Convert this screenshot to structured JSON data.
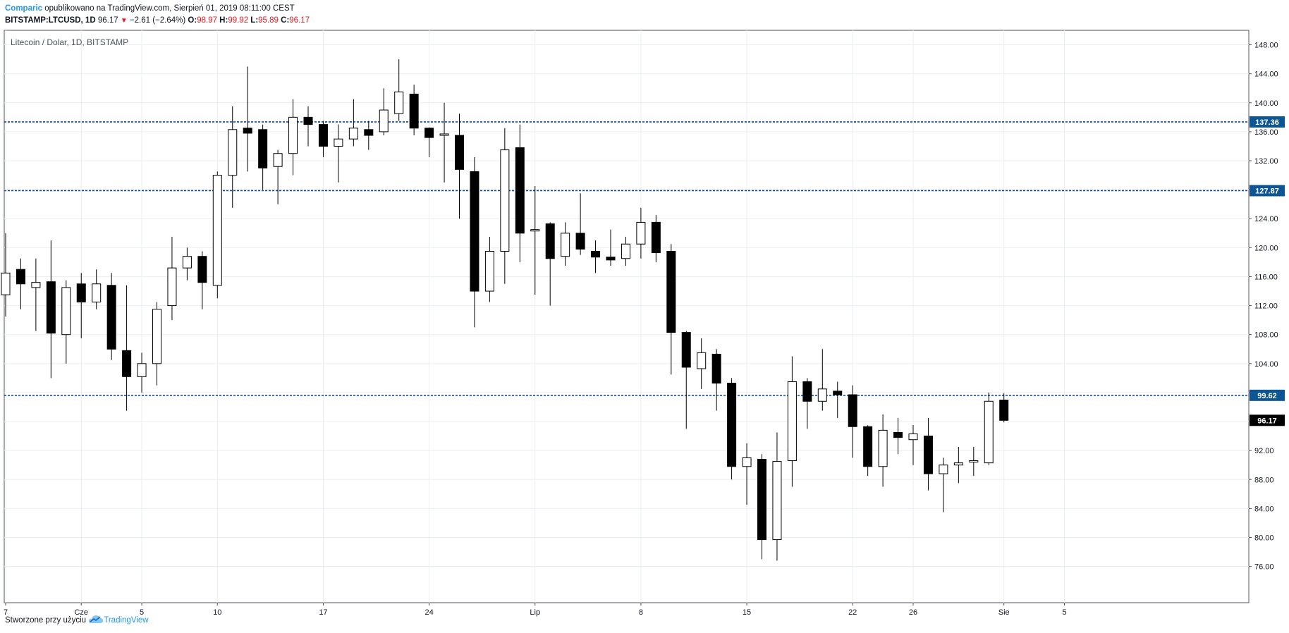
{
  "header": {
    "author": "Comparic",
    "published": "opublikowano na TradingView.com, Sierpień 01, 2019 08:11:00 CEST",
    "symbol": "BITSTAMP:LTCUSD, 1D",
    "last": "96.17",
    "change": "−2.61 (−2.64%)",
    "o_label": "O:",
    "o_value": "98.97",
    "h_label": "H:",
    "h_value": "99.92",
    "l_label": "L:",
    "l_value": "95.89",
    "c_label": "C:",
    "c_value": "96.17"
  },
  "footer": {
    "created_with": "Stworzone przy użyciu",
    "brand": "TradingView"
  },
  "colors": {
    "up_candle": "#ffffff",
    "down_candle": "#000000",
    "level_line": "#0d47a1",
    "level_label_bg": "#0d5593",
    "last_price_bg": "#000000",
    "grid": "#e9eef2"
  },
  "chart_data": {
    "type": "candlestick",
    "title": "Litecoin / Dolar, 1D, BITSTAMP",
    "ylim": [
      71,
      150
    ],
    "y_ticks": [
      76,
      80,
      84,
      88,
      92,
      96,
      100,
      104,
      108,
      112,
      116,
      120,
      124,
      128,
      132,
      136,
      140,
      144,
      148
    ],
    "x_tick_labels": [
      {
        "label": "7",
        "index": 0
      },
      {
        "label": "Cze",
        "index": 5
      },
      {
        "label": "5",
        "index": 9
      },
      {
        "label": "10",
        "index": 14
      },
      {
        "label": "17",
        "index": 21
      },
      {
        "label": "24",
        "index": 28
      },
      {
        "label": "Lip",
        "index": 35
      },
      {
        "label": "8",
        "index": 42
      },
      {
        "label": "15",
        "index": 49
      },
      {
        "label": "22",
        "index": 56
      },
      {
        "label": "26",
        "index": 60
      },
      {
        "label": "Sie",
        "index": 66
      },
      {
        "label": "5",
        "index": 70
      }
    ],
    "levels": [
      137.36,
      127.87,
      99.62
    ],
    "level_labels": [
      "137.36",
      "127.87",
      "99.62"
    ],
    "last_price": 96.17,
    "last_price_label": "96.17",
    "candles": [
      {
        "o": 113.5,
        "h": 122.0,
        "l": 110.5,
        "c": 116.5
      },
      {
        "o": 117.0,
        "h": 118.5,
        "l": 111.5,
        "c": 115.0
      },
      {
        "o": 114.5,
        "h": 118.5,
        "l": 108.5,
        "c": 115.2
      },
      {
        "o": 115.3,
        "h": 121.0,
        "l": 102.0,
        "c": 108.2
      },
      {
        "o": 108.0,
        "h": 115.5,
        "l": 104.0,
        "c": 114.5
      },
      {
        "o": 115.0,
        "h": 116.5,
        "l": 107.5,
        "c": 112.5
      },
      {
        "o": 112.5,
        "h": 117.0,
        "l": 111.5,
        "c": 115.0
      },
      {
        "o": 114.8,
        "h": 116.5,
        "l": 104.5,
        "c": 106.0
      },
      {
        "o": 105.8,
        "h": 114.8,
        "l": 97.5,
        "c": 102.2
      },
      {
        "o": 102.2,
        "h": 105.5,
        "l": 100.0,
        "c": 104.0
      },
      {
        "o": 104.0,
        "h": 112.5,
        "l": 101.0,
        "c": 111.5
      },
      {
        "o": 112.0,
        "h": 121.5,
        "l": 110.0,
        "c": 117.2
      },
      {
        "o": 117.2,
        "h": 120.0,
        "l": 115.5,
        "c": 118.8
      },
      {
        "o": 118.8,
        "h": 119.5,
        "l": 111.5,
        "c": 115.2
      },
      {
        "o": 114.8,
        "h": 130.5,
        "l": 113.0,
        "c": 130.0
      },
      {
        "o": 130.0,
        "h": 139.5,
        "l": 125.5,
        "c": 136.3
      },
      {
        "o": 136.5,
        "h": 145.0,
        "l": 130.5,
        "c": 135.8
      },
      {
        "o": 136.3,
        "h": 137.0,
        "l": 128.0,
        "c": 131.0
      },
      {
        "o": 131.2,
        "h": 133.5,
        "l": 126.0,
        "c": 133.0
      },
      {
        "o": 133.0,
        "h": 140.5,
        "l": 130.0,
        "c": 138.0
      },
      {
        "o": 138.0,
        "h": 139.5,
        "l": 134.0,
        "c": 137.0
      },
      {
        "o": 137.0,
        "h": 137.5,
        "l": 132.5,
        "c": 134.0
      },
      {
        "o": 134.0,
        "h": 137.0,
        "l": 129.0,
        "c": 135.0
      },
      {
        "o": 135.0,
        "h": 140.5,
        "l": 134.0,
        "c": 136.5
      },
      {
        "o": 136.3,
        "h": 137.5,
        "l": 133.5,
        "c": 135.5
      },
      {
        "o": 136.0,
        "h": 142.0,
        "l": 135.5,
        "c": 139.0
      },
      {
        "o": 138.5,
        "h": 146.0,
        "l": 137.5,
        "c": 141.5
      },
      {
        "o": 141.2,
        "h": 142.5,
        "l": 135.5,
        "c": 136.5
      },
      {
        "o": 136.5,
        "h": 136.6,
        "l": 132.5,
        "c": 135.2
      },
      {
        "o": 135.5,
        "h": 140.0,
        "l": 129.0,
        "c": 135.7
      },
      {
        "o": 135.5,
        "h": 138.5,
        "l": 124.0,
        "c": 130.8
      },
      {
        "o": 130.5,
        "h": 132.5,
        "l": 109.0,
        "c": 114.0
      },
      {
        "o": 114.0,
        "h": 121.5,
        "l": 112.5,
        "c": 119.5
      },
      {
        "o": 119.5,
        "h": 136.5,
        "l": 115.0,
        "c": 133.5
      },
      {
        "o": 133.8,
        "h": 137.0,
        "l": 118.0,
        "c": 122.0
      },
      {
        "o": 122.3,
        "h": 128.5,
        "l": 113.5,
        "c": 122.5
      },
      {
        "o": 123.3,
        "h": 123.5,
        "l": 112.0,
        "c": 118.5
      },
      {
        "o": 118.8,
        "h": 123.5,
        "l": 117.5,
        "c": 122.0
      },
      {
        "o": 122.0,
        "h": 127.5,
        "l": 119.0,
        "c": 119.8
      },
      {
        "o": 119.5,
        "h": 121.0,
        "l": 116.5,
        "c": 118.7
      },
      {
        "o": 118.7,
        "h": 122.5,
        "l": 117.5,
        "c": 118.3
      },
      {
        "o": 118.5,
        "h": 121.5,
        "l": 117.5,
        "c": 120.5
      },
      {
        "o": 120.5,
        "h": 125.5,
        "l": 118.5,
        "c": 123.5
      },
      {
        "o": 123.5,
        "h": 124.5,
        "l": 118.0,
        "c": 119.3
      },
      {
        "o": 119.5,
        "h": 120.5,
        "l": 102.5,
        "c": 108.3
      },
      {
        "o": 108.3,
        "h": 108.5,
        "l": 95.0,
        "c": 103.5
      },
      {
        "o": 103.3,
        "h": 107.5,
        "l": 100.5,
        "c": 105.5
      },
      {
        "o": 105.3,
        "h": 106.0,
        "l": 97.5,
        "c": 101.3
      },
      {
        "o": 101.3,
        "h": 102.0,
        "l": 88.0,
        "c": 89.8
      },
      {
        "o": 89.8,
        "h": 93.0,
        "l": 84.5,
        "c": 91.0
      },
      {
        "o": 90.8,
        "h": 91.5,
        "l": 77.0,
        "c": 79.7
      },
      {
        "o": 79.7,
        "h": 94.5,
        "l": 76.8,
        "c": 90.5
      },
      {
        "o": 90.6,
        "h": 105.0,
        "l": 87.0,
        "c": 101.5
      },
      {
        "o": 101.5,
        "h": 102.0,
        "l": 95.0,
        "c": 98.8
      },
      {
        "o": 98.8,
        "h": 106.0,
        "l": 97.5,
        "c": 100.5
      },
      {
        "o": 100.2,
        "h": 101.5,
        "l": 96.5,
        "c": 99.7
      },
      {
        "o": 99.7,
        "h": 101.0,
        "l": 91.0,
        "c": 95.3
      },
      {
        "o": 95.3,
        "h": 95.5,
        "l": 88.5,
        "c": 89.8
      },
      {
        "o": 89.8,
        "h": 97.0,
        "l": 87.0,
        "c": 94.8
      },
      {
        "o": 94.5,
        "h": 96.5,
        "l": 91.5,
        "c": 93.8
      },
      {
        "o": 93.5,
        "h": 95.5,
        "l": 90.0,
        "c": 94.3
      },
      {
        "o": 94.0,
        "h": 96.5,
        "l": 86.5,
        "c": 88.8
      },
      {
        "o": 88.8,
        "h": 91.0,
        "l": 83.5,
        "c": 90.0
      },
      {
        "o": 90.0,
        "h": 92.5,
        "l": 87.5,
        "c": 90.3
      },
      {
        "o": 90.4,
        "h": 92.5,
        "l": 88.5,
        "c": 90.6
      },
      {
        "o": 90.3,
        "h": 100.0,
        "l": 90.0,
        "c": 98.8
      },
      {
        "o": 98.97,
        "h": 99.92,
        "l": 95.89,
        "c": 96.17
      }
    ]
  }
}
